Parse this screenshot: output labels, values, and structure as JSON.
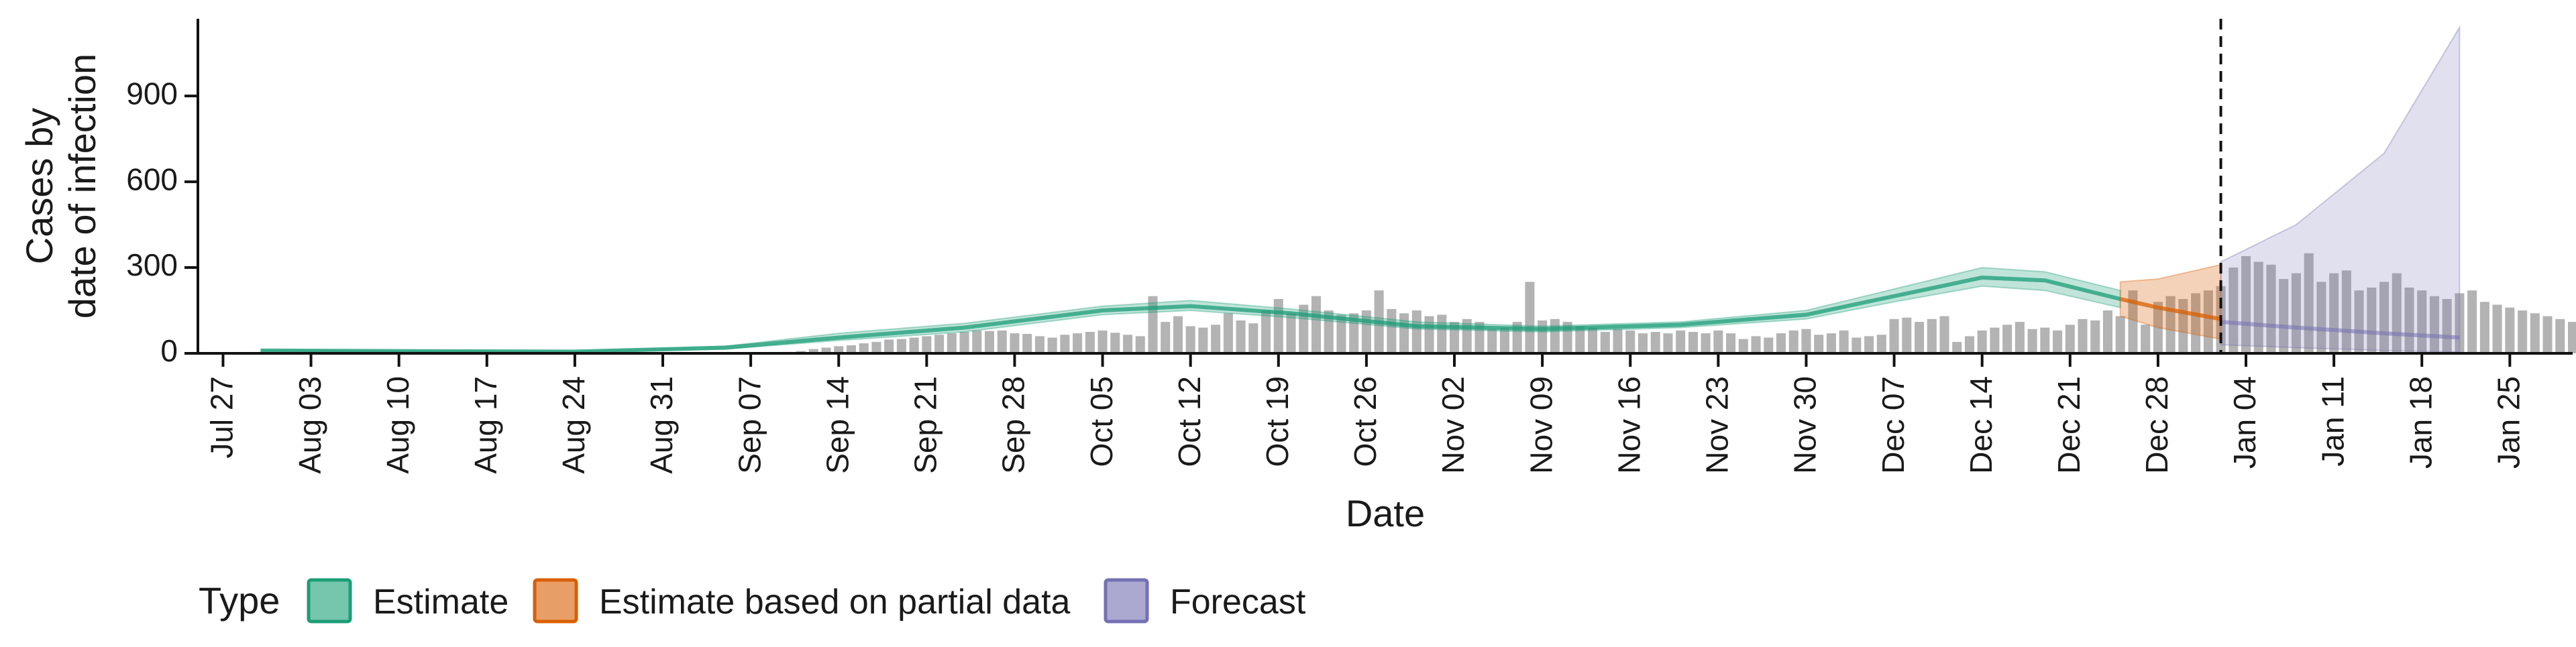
{
  "chart_data": {
    "type": "bar",
    "xlabel": "Date",
    "ylabel_lines": [
      "Cases by",
      "date of infection"
    ],
    "x_ticks": [
      "Jul 27",
      "Aug 03",
      "Aug 10",
      "Aug 17",
      "Aug 24",
      "Aug 31",
      "Sep 07",
      "Sep 14",
      "Sep 21",
      "Sep 28",
      "Oct 05",
      "Oct 12",
      "Oct 19",
      "Oct 26",
      "Nov 02",
      "Nov 09",
      "Nov 16",
      "Nov 23",
      "Nov 30",
      "Dec 07",
      "Dec 14",
      "Dec 21",
      "Dec 28",
      "Jan 04",
      "Jan 11",
      "Jan 18",
      "Jan 25"
    ],
    "y_ticks": [
      0,
      300,
      600,
      900
    ],
    "ylim": [
      0,
      1170
    ],
    "xlim": [
      "2020-07-25",
      "2021-01-30"
    ],
    "forecast_date": "2021-01-02",
    "observed_start": "2020-09-09",
    "observed_end": "2021-01-02",
    "observed_cases": [
      3,
      5,
      8,
      15,
      20,
      25,
      28,
      35,
      40,
      48,
      50,
      55,
      60,
      65,
      70,
      75,
      80,
      78,
      80,
      70,
      68,
      60,
      55,
      65,
      70,
      75,
      80,
      72,
      65,
      60,
      200,
      110,
      130,
      95,
      90,
      100,
      140,
      115,
      105,
      150,
      190,
      140,
      170,
      200,
      150,
      135,
      140,
      150,
      220,
      155,
      140,
      150,
      130,
      135,
      110,
      120,
      110,
      85,
      90,
      110,
      250,
      115,
      120,
      110,
      95,
      90,
      75,
      85,
      80,
      70,
      75,
      70,
      80,
      75,
      70,
      80,
      70,
      50,
      60,
      55,
      70,
      80,
      85,
      65,
      70,
      80,
      55,
      60,
      65,
      120,
      125,
      110,
      120,
      130,
      40,
      60,
      80,
      90,
      100,
      110,
      85,
      90,
      80,
      100,
      120,
      115,
      150,
      130,
      220,
      100,
      180,
      200,
      190,
      210,
      220,
      235,
      300,
      340,
      320,
      310,
      260,
      280,
      350,
      250,
      280,
      290,
      220,
      230,
      250,
      280,
      230,
      220,
      200,
      190,
      210,
      220,
      180,
      170,
      160,
      150,
      140,
      130,
      120,
      110,
      100,
      90,
      80,
      70,
      60,
      50,
      40,
      30
    ],
    "series": [
      {
        "name": "Estimate",
        "color": "#1B9E77",
        "median": [
          [
            "2020-07-30",
            10
          ],
          [
            "2020-08-10",
            8
          ],
          [
            "2020-08-24",
            6
          ],
          [
            "2020-09-05",
            20
          ],
          [
            "2020-09-14",
            55
          ],
          [
            "2020-09-24",
            90
          ],
          [
            "2020-10-05",
            150
          ],
          [
            "2020-10-12",
            165
          ],
          [
            "2020-10-20",
            140
          ],
          [
            "2020-10-30",
            95
          ],
          [
            "2020-11-09",
            85
          ],
          [
            "2020-11-20",
            100
          ],
          [
            "2020-11-30",
            135
          ],
          [
            "2020-12-07",
            200
          ],
          [
            "2020-12-14",
            265
          ],
          [
            "2020-12-19",
            255
          ],
          [
            "2020-12-25",
            190
          ]
        ],
        "lower_90": [
          [
            "2020-07-30",
            8
          ],
          [
            "2020-08-10",
            5
          ],
          [
            "2020-08-24",
            4
          ],
          [
            "2020-09-05",
            15
          ],
          [
            "2020-09-14",
            45
          ],
          [
            "2020-09-24",
            75
          ],
          [
            "2020-10-05",
            135
          ],
          [
            "2020-10-12",
            150
          ],
          [
            "2020-10-20",
            125
          ],
          [
            "2020-10-30",
            85
          ],
          [
            "2020-11-09",
            75
          ],
          [
            "2020-11-20",
            90
          ],
          [
            "2020-11-30",
            120
          ],
          [
            "2020-12-07",
            180
          ],
          [
            "2020-12-14",
            235
          ],
          [
            "2020-12-19",
            220
          ],
          [
            "2020-12-25",
            160
          ]
        ],
        "upper_90": [
          [
            "2020-07-30",
            12
          ],
          [
            "2020-08-10",
            10
          ],
          [
            "2020-08-24",
            8
          ],
          [
            "2020-09-05",
            25
          ],
          [
            "2020-09-14",
            70
          ],
          [
            "2020-09-24",
            105
          ],
          [
            "2020-10-05",
            165
          ],
          [
            "2020-10-12",
            185
          ],
          [
            "2020-10-20",
            155
          ],
          [
            "2020-10-30",
            110
          ],
          [
            "2020-11-09",
            95
          ],
          [
            "2020-11-20",
            110
          ],
          [
            "2020-11-30",
            150
          ],
          [
            "2020-12-07",
            225
          ],
          [
            "2020-12-14",
            300
          ],
          [
            "2020-12-19",
            285
          ],
          [
            "2020-12-25",
            220
          ]
        ]
      },
      {
        "name": "Estimate based on partial data",
        "color": "#D95F02",
        "median": [
          [
            "2020-12-25",
            190
          ],
          [
            "2020-12-28",
            160
          ],
          [
            "2021-01-02",
            120
          ]
        ],
        "lower_90": [
          [
            "2020-12-25",
            130
          ],
          [
            "2020-12-28",
            90
          ],
          [
            "2021-01-02",
            50
          ]
        ],
        "upper_90": [
          [
            "2020-12-25",
            250
          ],
          [
            "2020-12-28",
            260
          ],
          [
            "2021-01-02",
            310
          ]
        ]
      },
      {
        "name": "Forecast",
        "color": "#7570B3",
        "median": [
          [
            "2021-01-02",
            110
          ],
          [
            "2021-01-08",
            90
          ],
          [
            "2021-01-15",
            70
          ],
          [
            "2021-01-21",
            55
          ]
        ],
        "lower_90": [
          [
            "2021-01-02",
            30
          ],
          [
            "2021-01-08",
            20
          ],
          [
            "2021-01-15",
            10
          ],
          [
            "2021-01-21",
            5
          ]
        ],
        "upper_90": [
          [
            "2021-01-02",
            320
          ],
          [
            "2021-01-08",
            450
          ],
          [
            "2021-01-15",
            700
          ],
          [
            "2021-01-21",
            1140
          ]
        ]
      }
    ],
    "legend": {
      "title": "Type",
      "position": "bottom-left",
      "items": [
        {
          "label": "Estimate",
          "color": "#1B9E77"
        },
        {
          "label": "Estimate based on partial data",
          "color": "#D95F02"
        },
        {
          "label": "Forecast",
          "color": "#7570B3"
        }
      ]
    },
    "grid": false
  }
}
